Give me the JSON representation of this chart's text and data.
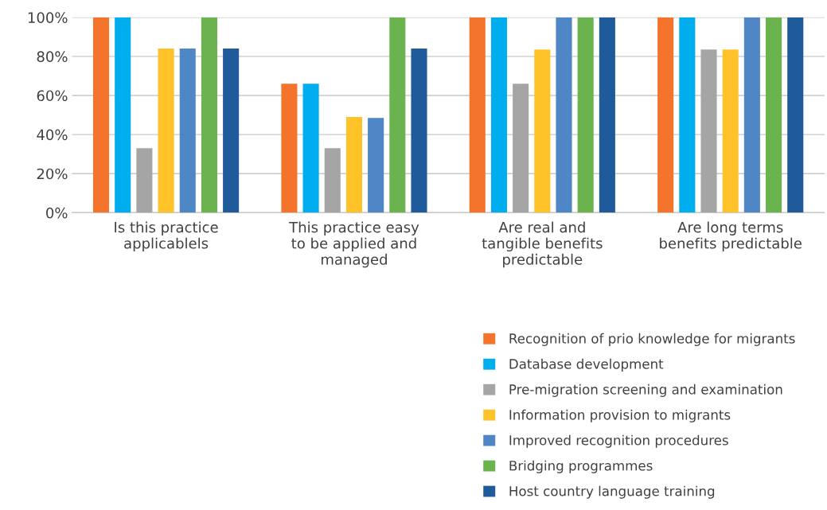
{
  "chart_data": {
    "type": "bar",
    "categories": [
      "Is this practice applicablels",
      "This practice easy to be applied and managed",
      "Are real and tangible benefits predictable",
      "Are long terms benefits predictable"
    ],
    "series": [
      {
        "name": "Recognition of prio knowledge for migrants",
        "color": "#f4742c",
        "values": [
          100,
          66,
          100,
          100
        ]
      },
      {
        "name": "Database development",
        "color": "#00adef",
        "values": [
          100,
          66,
          100,
          100
        ]
      },
      {
        "name": "Pre-migration screening and examination",
        "color": "#a5a5a5",
        "values": [
          33,
          33,
          66,
          83.5
        ]
      },
      {
        "name": "Information provision to migrants",
        "color": "#ffc229",
        "values": [
          84,
          49,
          83.5,
          83.5
        ]
      },
      {
        "name": "Improved recognition procedures",
        "color": "#4f86c6",
        "values": [
          84,
          48.5,
          100,
          100
        ]
      },
      {
        "name": "Bridging programmes",
        "color": "#6ab34f",
        "values": [
          100,
          100,
          100,
          100
        ]
      },
      {
        "name": "Host country language training",
        "color": "#1f5b9a",
        "values": [
          84,
          84,
          100,
          100
        ]
      }
    ],
    "ylim": [
      0,
      100
    ],
    "yticks": [
      {
        "value": 0,
        "label": "0%"
      },
      {
        "value": 20,
        "label": "20%"
      },
      {
        "value": 40,
        "label": "40%"
      },
      {
        "value": 60,
        "label": "60%"
      },
      {
        "value": 80,
        "label": "80%"
      },
      {
        "value": 100,
        "label": "100%"
      }
    ],
    "grid": "y",
    "legend": "bottom right"
  }
}
